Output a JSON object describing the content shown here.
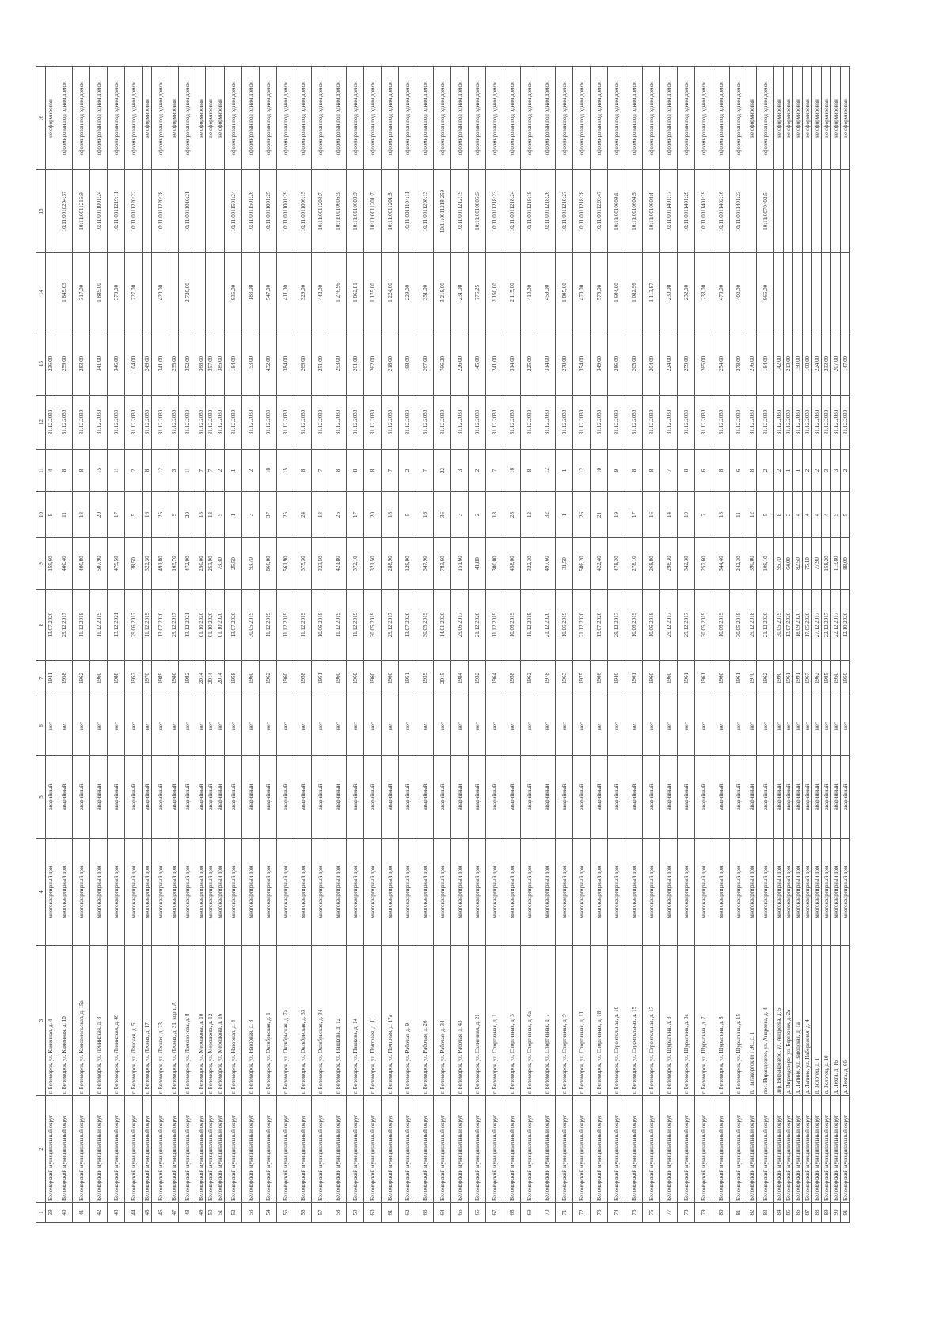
{
  "header": [
    "1",
    "2",
    "3",
    "4",
    "5",
    "6",
    "7",
    "8",
    "9",
    "10",
    "11",
    "12",
    "13",
    "14",
    "15",
    "16"
  ],
  "rows": [
    [
      "39",
      "Беломорский муниципальный округ",
      "г. Беломорск, ул. Каменная, д. 4",
      "многоквартирный дом",
      "аварийный",
      "нет",
      "1941",
      "13.07.2020",
      "159,60",
      "8",
      "4",
      "31.12.2030",
      "236,00",
      "",
      "",
      "не сформирован"
    ],
    [
      "40",
      "Беломорский муниципальный округ",
      "г. Беломорск, ул. Каменная, д. 10",
      "многоквартирный дом",
      "аварийный",
      "нет",
      "1958",
      "29.12.2017",
      "400,40",
      "11",
      "8",
      "31.12.2030",
      "259,00",
      "1 849,03",
      "10:11:0010204:37",
      "сформирован под одним домом"
    ],
    [
      "41",
      "Беломорский муниципальный округ",
      "г. Беломорск, ул. Комсомольская, д. 15а",
      "многоквартирный дом",
      "аварийный",
      "нет",
      "1962",
      "11.12.2019",
      "400,80",
      "13",
      "8",
      "31.12.2030",
      "283,00",
      "317,00",
      "10:11:0011216:9",
      "сформирован под одним домом"
    ],
    [
      "42",
      "Беломорский муниципальный округ",
      "г. Беломорск, ул. Ленинская, д. 8",
      "многоквартирный дом",
      "аварийный",
      "нет",
      "1960",
      "11.12.2019",
      "507,90",
      "20",
      "15",
      "31.12.2030",
      "341,00",
      "1 889,00",
      "10:11:0011001:24",
      "сформирован под одним домом"
    ],
    [
      "43",
      "Беломорский муниципальный округ",
      "г. Беломорск, ул. Ленинская, д. 49",
      "многоквартирный дом",
      "аварийный",
      "нет",
      "1988",
      "13.12.2021",
      "479,50",
      "17",
      "11",
      "31.12.2030",
      "346,00",
      "370,00",
      "10:11:0011219:11",
      "сформирован под одним домом"
    ],
    [
      "44",
      "Беломорский муниципальный округ",
      "г. Беломорск, ул. Ленская, д. 5",
      "многоквартирный дом",
      "аварийный",
      "нет",
      "1952",
      "29.06.2017",
      "38,50",
      "5",
      "2",
      "31.12.2030",
      "104,00",
      "727,00",
      "10:11:0011220:22",
      "сформирован под одним домом"
    ],
    [
      "45",
      "Беломорский муниципальный округ",
      "г. Беломорск, ул. Лесная, д. 17",
      "многоквартирный дом",
      "аварийный",
      "нет",
      "1970",
      "11.12.2019",
      "322,30",
      "16",
      "8",
      "31.12.2030",
      "249,00",
      "",
      "",
      "не сформирован"
    ],
    [
      "46",
      "Беломорский муниципальный округ",
      "г. Беломорск, ул. Лесная, д. 23",
      "многоквартирный дом",
      "аварийный",
      "нет",
      "1989",
      "13.07.2020",
      "491,80",
      "25",
      "12",
      "31.12.2030",
      "341,00",
      "420,00",
      "10:11:0011220:28",
      "сформирован под одним домом"
    ],
    [
      "47",
      "Беломорский муниципальный округ",
      "г. Беломорск, ул. Лесная, д. 31, корп. А",
      "многоквартирный дом",
      "аварийный",
      "нет",
      "1980",
      "29.12.2017",
      "163,70",
      "9",
      "3",
      "31.12.2030",
      "235,00",
      "",
      "",
      "не сформирован"
    ],
    [
      "48",
      "Беломорский муниципальный округ",
      "г. Беломорск, ул. Ломоносова, д. 8",
      "многоквартирный дом",
      "аварийный",
      "нет",
      "1982",
      "13.12.2021",
      "472,90",
      "20",
      "11",
      "31.12.2030",
      "352,00",
      "2 720,00",
      "10:11:0011010:21",
      "сформирован под одним домом"
    ],
    [
      "49",
      "Беломорский муниципальный округ",
      "г. Беломорск, ул. Мерецкова, д. 10",
      "многоквартирный дом",
      "аварийный",
      "нет",
      "2014",
      "01.10.2020",
      "250,00",
      "13",
      "7",
      "31.12.2030",
      "368,00",
      "",
      "",
      "не сформирован"
    ],
    [
      "50",
      "Беломорский муниципальный округ",
      "г. Беломорск, ул. Мерецкова, д. 12",
      "многоквартирный дом",
      "аварийный",
      "нет",
      "2014",
      "01.10.2020",
      "253,90",
      "13",
      "7",
      "31.12.2030",
      "357,00",
      "",
      "",
      "не сформирован"
    ],
    [
      "51",
      "Беломорский муниципальный округ",
      "г. Беломорск, ул. Мерецкова, д. 16",
      "многоквартирный дом",
      "аварийный",
      "нет",
      "2014",
      "01.10.2020",
      "73,30",
      "5",
      "2",
      "31.12.2030",
      "385,00",
      "",
      "",
      "не сформирован"
    ],
    [
      "52",
      "Беломорский муниципальный округ",
      "г. Беломорск, ул. Нагорная, д. 4",
      "многоквартирный дом",
      "аварийный",
      "нет",
      "1958",
      "13.07.2020",
      "25,50",
      "1",
      "1",
      "31.12.2030",
      "184,00",
      "935,00",
      "10:11:0011501:24",
      "сформирован под одним домом"
    ],
    [
      "53",
      "Беломорский муниципальный округ",
      "г. Беломорск, ул. Нагорная, д. 8",
      "многоквартирный дом",
      "аварийный",
      "нет",
      "1960",
      "30.05.2019",
      "93,70",
      "3",
      "2",
      "31.12.2030",
      "153,00",
      "183,00",
      "10:11:0011501:26",
      "сформирован под одним домом"
    ],
    [
      "54",
      "Беломорский муниципальный округ",
      "г. Беломорск, ул. Октябрьская, д. 1",
      "многоквартирный дом",
      "аварийный",
      "нет",
      "1962",
      "11.12.2019",
      "866,00",
      "37",
      "18",
      "31.12.2030",
      "432,00",
      "547,00",
      "10:11:0011001:25",
      "сформирован под одним домом"
    ],
    [
      "55",
      "Беломорский муниципальный округ",
      "г. Беломорск, ул. Октябрьская, д. 7а",
      "многоквартирный дом",
      "аварийный",
      "нет",
      "1960",
      "11.12.2019",
      "561,90",
      "25",
      "15",
      "31.12.2030",
      "384,00",
      "411,00",
      "10:11:0011001:29",
      "сформирован под одним домом"
    ],
    [
      "56",
      "Беломорский муниципальный округ",
      "г. Беломорск, ул. Октябрьская, д. 33",
      "многоквартирный дом",
      "аварийный",
      "нет",
      "1958",
      "11.12.2019",
      "375,30",
      "24",
      "8",
      "31.12.2030",
      "269,00",
      "329,00",
      "10:11:0011006:15",
      "сформирован под одним домом"
    ],
    [
      "57",
      "Беломорский муниципальный округ",
      "г. Беломорск, ул. Октябрьская, д. 34",
      "многоквартирный дом",
      "аварийный",
      "нет",
      "1951",
      "10.06.2019",
      "323,50",
      "13",
      "7",
      "31.12.2030",
      "251,00",
      "442,00",
      "10:11:0011203:7",
      "сформирован под одним домом"
    ],
    [
      "58",
      "Беломорский муниципальный округ",
      "г. Беломорск, ул. Пашкова, д. 12",
      "многоквартирный дом",
      "аварийный",
      "нет",
      "1960",
      "11.12.2019",
      "421,80",
      "25",
      "8",
      "31.12.2030",
      "293,00",
      "1 276,96",
      "10:11:0010606:3",
      "сформирован под одним домом"
    ],
    [
      "59",
      "Беломорский муниципальный округ",
      "г. Беломорск, ул. Пашкова, д. 14",
      "многоквартирный дом",
      "аварийный",
      "нет",
      "1960",
      "11.12.2019",
      "372,10",
      "17",
      "8",
      "31.12.2030",
      "261,00",
      "1 862,81",
      "10:11:0010603:9",
      "сформирован под одним домом"
    ],
    [
      "60",
      "Беломорский муниципальный округ",
      "г. Беломорск, ул. Почтовая, д. 11",
      "многоквартирный дом",
      "аварийный",
      "нет",
      "1960",
      "30.05.2019",
      "321,50",
      "20",
      "8",
      "31.12.2030",
      "262,00",
      "1 175,00",
      "10:11:0011201:7",
      "сформирован под одним домом"
    ],
    [
      "61",
      "Беломорский муниципальный округ",
      "г. Беломорск, ул. Почтовая, д. 17а",
      "многоквартирный дом",
      "аварийный",
      "нет",
      "1960",
      "29.12.2017",
      "288,90",
      "18",
      "7",
      "31.12.2030",
      "218,00",
      "1 224,00",
      "10:11:0011201:8",
      "сформирован под одним домом"
    ],
    [
      "62",
      "Беломорский муниципальный округ",
      "г. Беломорск, ул. Рабочая, д. 9",
      "многоквартирный дом",
      "аварийный",
      "нет",
      "1951",
      "13.07.2020",
      "129,90",
      "5",
      "2",
      "31.12.2030",
      "198,00",
      "229,00",
      "10:11:0011104:11",
      "сформирован под одним домом"
    ],
    [
      "63",
      "Беломорский муниципальный округ",
      "г. Беломорск, ул. Рабочая, д. 26",
      "многоквартирный дом",
      "аварийный",
      "нет",
      "1939",
      "30.05.2019",
      "347,90",
      "16",
      "7",
      "31.12.2030",
      "267,00",
      "351,00",
      "10:11:0011208:13",
      "сформирован под одним домом"
    ],
    [
      "64",
      "Беломорский муниципальный округ",
      "г. Беломорск, ул. Рабочая, д. 34",
      "многоквартирный дом",
      "аварийный",
      "нет",
      "2015",
      "14.01.2020",
      "783,60",
      "36",
      "22",
      "31.12.2030",
      "766,20",
      "3 218,00",
      "10:11:0011218:259",
      "сформирован под одним домом"
    ],
    [
      "65",
      "Беломорский муниципальный округ",
      "г. Беломорск, ул. Рабочая, д. 43",
      "многоквартирный дом",
      "аварийный",
      "нет",
      "1984",
      "29.06.2017",
      "151,60",
      "3",
      "3",
      "31.12.2030",
      "226,00",
      "231,00",
      "10:11:0011212:19",
      "сформирован под одним домом"
    ],
    [
      "66",
      "Беломорский муниципальный округ",
      "г. Беломорск, ул. Солнечная, д. 21",
      "многоквартирный дом",
      "аварийный",
      "нет",
      "1932",
      "21.12.2020",
      "41,80",
      "2",
      "2",
      "31.12.2030",
      "145,00",
      "776,25",
      "10:11:0010806:6",
      "сформирован под одним домом"
    ],
    [
      "67",
      "Беломорский муниципальный округ",
      "г. Беломорск, ул. Спортивная, д. 1",
      "многоквартирный дом",
      "аварийный",
      "нет",
      "1964",
      "11.12.2019",
      "300,00",
      "18",
      "7",
      "31.12.2030",
      "241,00",
      "2 150,00",
      "10:11:0011218:23",
      "сформирован под одним домом"
    ],
    [
      "68",
      "Беломорский муниципальный округ",
      "г. Беломорск, ул. Спортивная, д. 3",
      "многоквартирный дом",
      "аварийный",
      "нет",
      "1958",
      "10.06.2019",
      "458,00",
      "28",
      "16",
      "31.12.2030",
      "314,00",
      "2 115,00",
      "10:11:0011218:24",
      "сформирован под одним домом"
    ],
    [
      "69",
      "Беломорский муниципальный округ",
      "г. Беломорск, ул. Спортивная, д. 6а",
      "многоквартирный дом",
      "аварийный",
      "нет",
      "1962",
      "11.12.2019",
      "322,30",
      "12",
      "8",
      "31.12.2030",
      "225,00",
      "410,00",
      "10:11:0011219:19",
      "сформирован под одним домом"
    ],
    [
      "70",
      "Беломорский муниципальный округ",
      "г. Беломорск, ул. Спортивная, д. 7",
      "многоквартирный дом",
      "аварийный",
      "нет",
      "1978",
      "21.12.2020",
      "497,60",
      "32",
      "12",
      "31.12.2030",
      "314,00",
      "459,00",
      "10:11:0011218:26",
      "сформирован под одним домом"
    ],
    [
      "71",
      "Беломорский муниципальный округ",
      "г. Беломорск, ул. Спортивная, д. 9",
      "многоквартирный дом",
      "аварийный",
      "нет",
      "1963",
      "10.06.2019",
      "31,50",
      "1",
      "1",
      "31.12.2030",
      "278,00",
      "1 805,00",
      "10:11:0011218:27",
      "сформирован под одним домом"
    ],
    [
      "72",
      "Беломорский муниципальный округ",
      "г. Беломорск, ул. Спортивная, д. 11",
      "многоквартирный дом",
      "аварийный",
      "нет",
      "1975",
      "21.12.2020",
      "506,20",
      "26",
      "12",
      "31.12.2030",
      "354,00",
      "470,00",
      "10:11:0011218:28",
      "сформирован под одним домом"
    ],
    [
      "73",
      "Беломорский муниципальный округ",
      "г. Беломорск, ул. Спортивная, д. 18",
      "многоквартирный дом",
      "аварийный",
      "нет",
      "1966",
      "13.07.2020",
      "422,40",
      "21",
      "10",
      "31.12.2030",
      "349,00",
      "576,00",
      "10:11:0011220:47",
      "сформирован под одним домом"
    ],
    [
      "74",
      "Беломорский муниципальный округ",
      "г. Беломорск, ул. Строительная, д. 10",
      "многоквартирный дом",
      "аварийный",
      "нет",
      "1940",
      "29.12.2017",
      "478,30",
      "19",
      "9",
      "31.12.2030",
      "286,00",
      "1 604,00",
      "10:11:0010609:1",
      "сформирован под одним домом"
    ],
    [
      "75",
      "Беломорский муниципальный округ",
      "г. Беломорск, ул. Строительная, д. 15",
      "многоквартирный дом",
      "аварийный",
      "нет",
      "1961",
      "10.06.2019",
      "278,10",
      "17",
      "8",
      "31.12.2030",
      "205,00",
      "1 082,96",
      "10:11:0010604:5",
      "сформирован под одним домом"
    ],
    [
      "76",
      "Беломорский муниципальный округ",
      "г. Беломорск, ул. Строительная, д. 17",
      "многоквартирный дом",
      "аварийный",
      "нет",
      "1960",
      "10.06.2019",
      "268,80",
      "16",
      "8",
      "31.12.2030",
      "204,00",
      "1 113,87",
      "10:11:0010604:4",
      "сформирован под одним домом"
    ],
    [
      "77",
      "Беломорский муниципальный округ",
      "г. Беломорск, ул. Шурыгина, д. 3",
      "многоквартирный дом",
      "аварийный",
      "нет",
      "1960",
      "29.12.2017",
      "298,30",
      "14",
      "7",
      "31.12.2030",
      "224,00",
      "230,00",
      "10:11:0011401:17",
      "сформирован под одним домом"
    ],
    [
      "78",
      "Беломорский муниципальный округ",
      "г. Беломорск, ул. Шурыгина, д. 3а",
      "многоквартирный дом",
      "аварийный",
      "нет",
      "1961",
      "29.12.2017",
      "342,30",
      "19",
      "8",
      "31.12.2030",
      "259,00",
      "232,00",
      "10:11:0011401:29",
      "сформирован под одним домом"
    ],
    [
      "79",
      "Беломорский муниципальный округ",
      "г. Беломорск, ул. Шурыгина, д. 7",
      "многоквартирный дом",
      "аварийный",
      "нет",
      "1961",
      "30.05.2019",
      "257,60",
      "7",
      "6",
      "31.12.2030",
      "265,00",
      "233,00",
      "10:11:0011401:19",
      "сформирован под одним домом"
    ],
    [
      "80",
      "Беломорский муниципальный округ",
      "г. Беломорск, ул. Шурыгина, д. 8",
      "многоквартирный дом",
      "аварийный",
      "нет",
      "1960",
      "10.06.2019",
      "344,40",
      "13",
      "8",
      "31.12.2030",
      "254,00",
      "470,00",
      "10:11:0011402:16",
      "сформирован под одним домом"
    ],
    [
      "81",
      "Беломорский муниципальный округ",
      "г. Беломорск, ул. Шурыгина, д. 15",
      "многоквартирный дом",
      "аварийный",
      "нет",
      "1961",
      "30.05.2019",
      "242,30",
      "11",
      "6",
      "31.12.2030",
      "278,00",
      "402,00",
      "10:11:0011401:23",
      "сформирован под одним домом"
    ],
    [
      "82",
      "Беломорский муниципальный округ",
      "п. Палакоргский ГЭС, д. 1",
      "многоквартирный дом",
      "аварийный",
      "нет",
      "1970",
      "29.12.2018",
      "390,00",
      "12",
      "8",
      "31.12.2030",
      "276,00",
      "",
      "",
      "не сформирован"
    ],
    [
      "83",
      "Беломорский муниципальный округ",
      "пос. Вирандозеро, ул. Андреева, д. 4",
      "многоквартирный дом",
      "аварийный",
      "нет",
      "1962",
      "21.12.2020",
      "109,10",
      "5",
      "2",
      "31.12.2030",
      "184,00",
      "966,00",
      "10:11:0070402:5",
      "сформирован под одним домом"
    ],
    [
      "84",
      "Беломорский муниципальный округ",
      "дер. Вирандозеро, ул. Андреева, д. 5",
      "многоквартирный дом",
      "аварийный",
      "нет",
      "1990",
      "30.05.2019",
      "95,70",
      "8",
      "2",
      "31.12.2030",
      "142,00",
      "",
      "",
      "не сформирован"
    ],
    [
      "85",
      "Беломорский муниципальный округ",
      "д. Вирандозеро, ул. Березовая, д. 2а",
      "многоквартирный дом",
      "аварийный",
      "нет",
      "1961",
      "13.07.2020",
      "64,00",
      "3",
      "1",
      "31.12.2030",
      "213,00",
      "",
      "",
      "не сформирован"
    ],
    [
      "86",
      "Беломорский муниципальный округ",
      "д. Лапино, ул. Заводская, д. 1а",
      "многоквартирный дом",
      "аварийный",
      "нет",
      "1991",
      "18.09.2020",
      "82,50",
      "4",
      "1",
      "31.12.2030",
      "150,00",
      "",
      "",
      "не сформирован"
    ],
    [
      "87",
      "Беломорский муниципальный округ",
      "д. Лапино, ул. Набережная, д. 4",
      "многоквартирный дом",
      "аварийный",
      "нет",
      "1967",
      "17.05.2020",
      "75,10",
      "4",
      "2",
      "31.12.2030",
      "168,00",
      "",
      "",
      "не сформирован"
    ],
    [
      "88",
      "Беломорский муниципальный округ",
      "п. Золотец, д. 1",
      "многоквартирный дом",
      "аварийный",
      "нет",
      "1962",
      "27.12.2017",
      "77,90",
      "4",
      "2",
      "31.12.2030",
      "224,00",
      "",
      "",
      "не сформирован"
    ],
    [
      "89",
      "Беломорский муниципальный округ",
      "п. Золотец, д. 10",
      "многоквартирный дом",
      "аварийный",
      "нет",
      "1985",
      "22.12.2017",
      "158,20",
      "4",
      "3",
      "31.12.2030",
      "233,00",
      "",
      "",
      "не сформирован"
    ],
    [
      "90",
      "Беломорский муниципальный округ",
      "д. Лехта, д. 16",
      "многоквартирный дом",
      "аварийный",
      "нет",
      "1950",
      "22.12.2017",
      "113,80",
      "5",
      "3",
      "31.12.2030",
      "207,00",
      "",
      "",
      "не сформирован"
    ],
    [
      "91",
      "Беломорский муниципальный округ",
      "д. Лехта, д. 6б",
      "многоквартирный дом",
      "аварийный",
      "нет",
      "1950",
      "12.10.2020",
      "88,00",
      "5",
      "2",
      "31.12.2030",
      "147,00",
      "",
      "",
      "не сформирован"
    ]
  ]
}
